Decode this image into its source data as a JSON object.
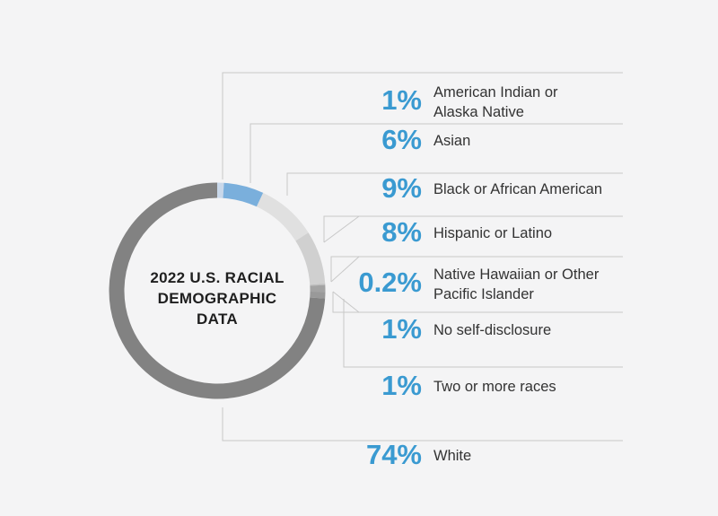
{
  "chart_data": {
    "type": "donut",
    "title_lines": [
      "2022 U.S. RACIAL",
      "DEMOGRAPHIC",
      "DATA"
    ],
    "categories": [
      "American Indian or Alaska Native",
      "Asian",
      "Black or African American",
      "Hispanic or Latino",
      "Native Hawaiian or Other Pacific Islander",
      "No self-disclosure",
      "Two or more races",
      "White"
    ],
    "values": [
      1,
      6,
      9,
      8,
      0.2,
      1,
      1,
      74
    ],
    "value_labels": [
      "1%",
      "6%",
      "9%",
      "8%",
      "0.2%",
      "1%",
      "1%",
      "74%"
    ],
    "label_lines": [
      [
        "American Indian or",
        "Alaska Native"
      ],
      [
        "Asian"
      ],
      [
        "Black or African American"
      ],
      [
        "Hispanic or Latino"
      ],
      [
        "Native Hawaiian or Other",
        "Pacific Islander"
      ],
      [
        "No self-disclosure"
      ],
      [
        "Two or more races"
      ],
      [
        "White"
      ]
    ],
    "colors": [
      "#c9d8ea",
      "#7aafdc",
      "#e0e0e0",
      "#d0d0d0",
      "#bdbdbd",
      "#a3a3a3",
      "#999999",
      "#828282"
    ]
  }
}
